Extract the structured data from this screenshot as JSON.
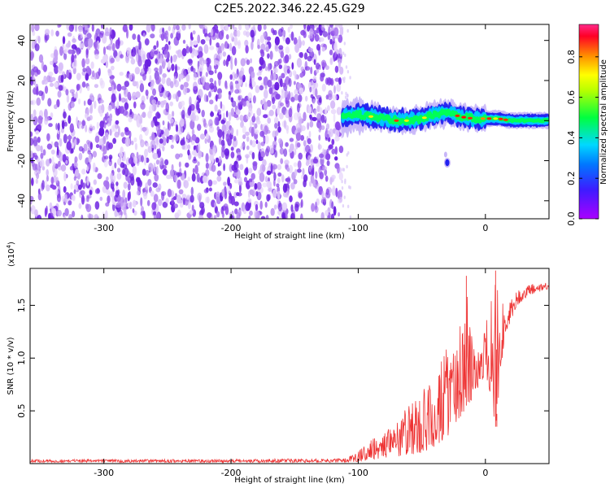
{
  "title": "C2E5.2022.346.22.45.G29",
  "colors": {
    "snr_line": "#ee3333",
    "spectro_purple": "#7a2fe6",
    "colormap": [
      "#aa00ff",
      "#1c1cff",
      "#00c8ff",
      "#00ff40",
      "#ffff00",
      "#ff8800",
      "#ff0033",
      "#ff2a8a"
    ]
  },
  "chart_data": [
    {
      "type": "heatmap",
      "title": "C2E5.2022.346.22.45.G29",
      "xlabel": "Height of straight line (km)",
      "ylabel": "Frequency (Hz)",
      "xlim": [
        -358,
        50
      ],
      "ylim": [
        -49,
        48
      ],
      "xticks": [
        -300,
        -200,
        -100,
        0
      ],
      "yticks": [
        -40,
        -20,
        0,
        20,
        40
      ],
      "colorbar": {
        "label": "Normalized spectral amplitude",
        "range": [
          0,
          0.96
        ],
        "ticks": [
          0.0,
          0.2,
          0.4,
          0.6,
          0.8
        ]
      },
      "noise_region": {
        "x_from": -358,
        "x_to": -113,
        "level": 0.1
      },
      "signal_ridge": [
        {
          "x": -112,
          "y": 2
        },
        {
          "x": -100,
          "y": 3
        },
        {
          "x": -90,
          "y": 2
        },
        {
          "x": -80,
          "y": 1
        },
        {
          "x": -70,
          "y": 0
        },
        {
          "x": -60,
          "y": 0
        },
        {
          "x": -50,
          "y": 1
        },
        {
          "x": -40,
          "y": 3
        },
        {
          "x": -30,
          "y": 4
        },
        {
          "x": -20,
          "y": 2
        },
        {
          "x": -10,
          "y": 1
        },
        {
          "x": 0,
          "y": 1
        },
        {
          "x": 10,
          "y": 1
        },
        {
          "x": 20,
          "y": 0
        },
        {
          "x": 30,
          "y": 0
        },
        {
          "x": 40,
          "y": 0
        },
        {
          "x": 50,
          "y": 0
        }
      ],
      "isolated_blob": {
        "x": -30,
        "y": -21
      }
    },
    {
      "type": "line",
      "xlabel": "Height of straight line (km)",
      "ylabel": "SNR (10 * v/v)",
      "y_exponent": "(x10",
      "y_exponent_power": "4",
      "y_exponent_close": ")",
      "xlim": [
        -358,
        50
      ],
      "ylim": [
        0,
        1.85
      ],
      "xticks": [
        -300,
        -200,
        -100,
        0
      ],
      "yticks": [
        0.5,
        1.0,
        1.5
      ],
      "series": [
        {
          "envelope": [
            {
              "x": -358,
              "low": 0.01,
              "high": 0.04
            },
            {
              "x": -200,
              "low": 0.01,
              "high": 0.04
            },
            {
              "x": -110,
              "low": 0.01,
              "high": 0.05
            },
            {
              "x": -100,
              "low": 0.02,
              "high": 0.12
            },
            {
              "x": -90,
              "low": 0.04,
              "high": 0.22
            },
            {
              "x": -80,
              "low": 0.05,
              "high": 0.32
            },
            {
              "x": -70,
              "low": 0.06,
              "high": 0.45
            },
            {
              "x": -60,
              "low": 0.08,
              "high": 0.55
            },
            {
              "x": -50,
              "low": 0.1,
              "high": 0.7
            },
            {
              "x": -40,
              "low": 0.15,
              "high": 0.85
            },
            {
              "x": -30,
              "low": 0.25,
              "high": 1.1
            },
            {
              "x": -20,
              "low": 0.4,
              "high": 1.3
            },
            {
              "x": -15,
              "low": 0.55,
              "high": 1.78
            },
            {
              "x": -10,
              "low": 0.6,
              "high": 1.1
            },
            {
              "x": 0,
              "low": 0.85,
              "high": 1.3
            },
            {
              "x": 8,
              "low": 0.35,
              "high": 1.83
            },
            {
              "x": 15,
              "low": 1.2,
              "high": 1.45
            },
            {
              "x": 25,
              "low": 1.5,
              "high": 1.65
            },
            {
              "x": 35,
              "low": 1.6,
              "high": 1.7
            },
            {
              "x": 50,
              "low": 1.66,
              "high": 1.72
            }
          ]
        }
      ]
    }
  ]
}
